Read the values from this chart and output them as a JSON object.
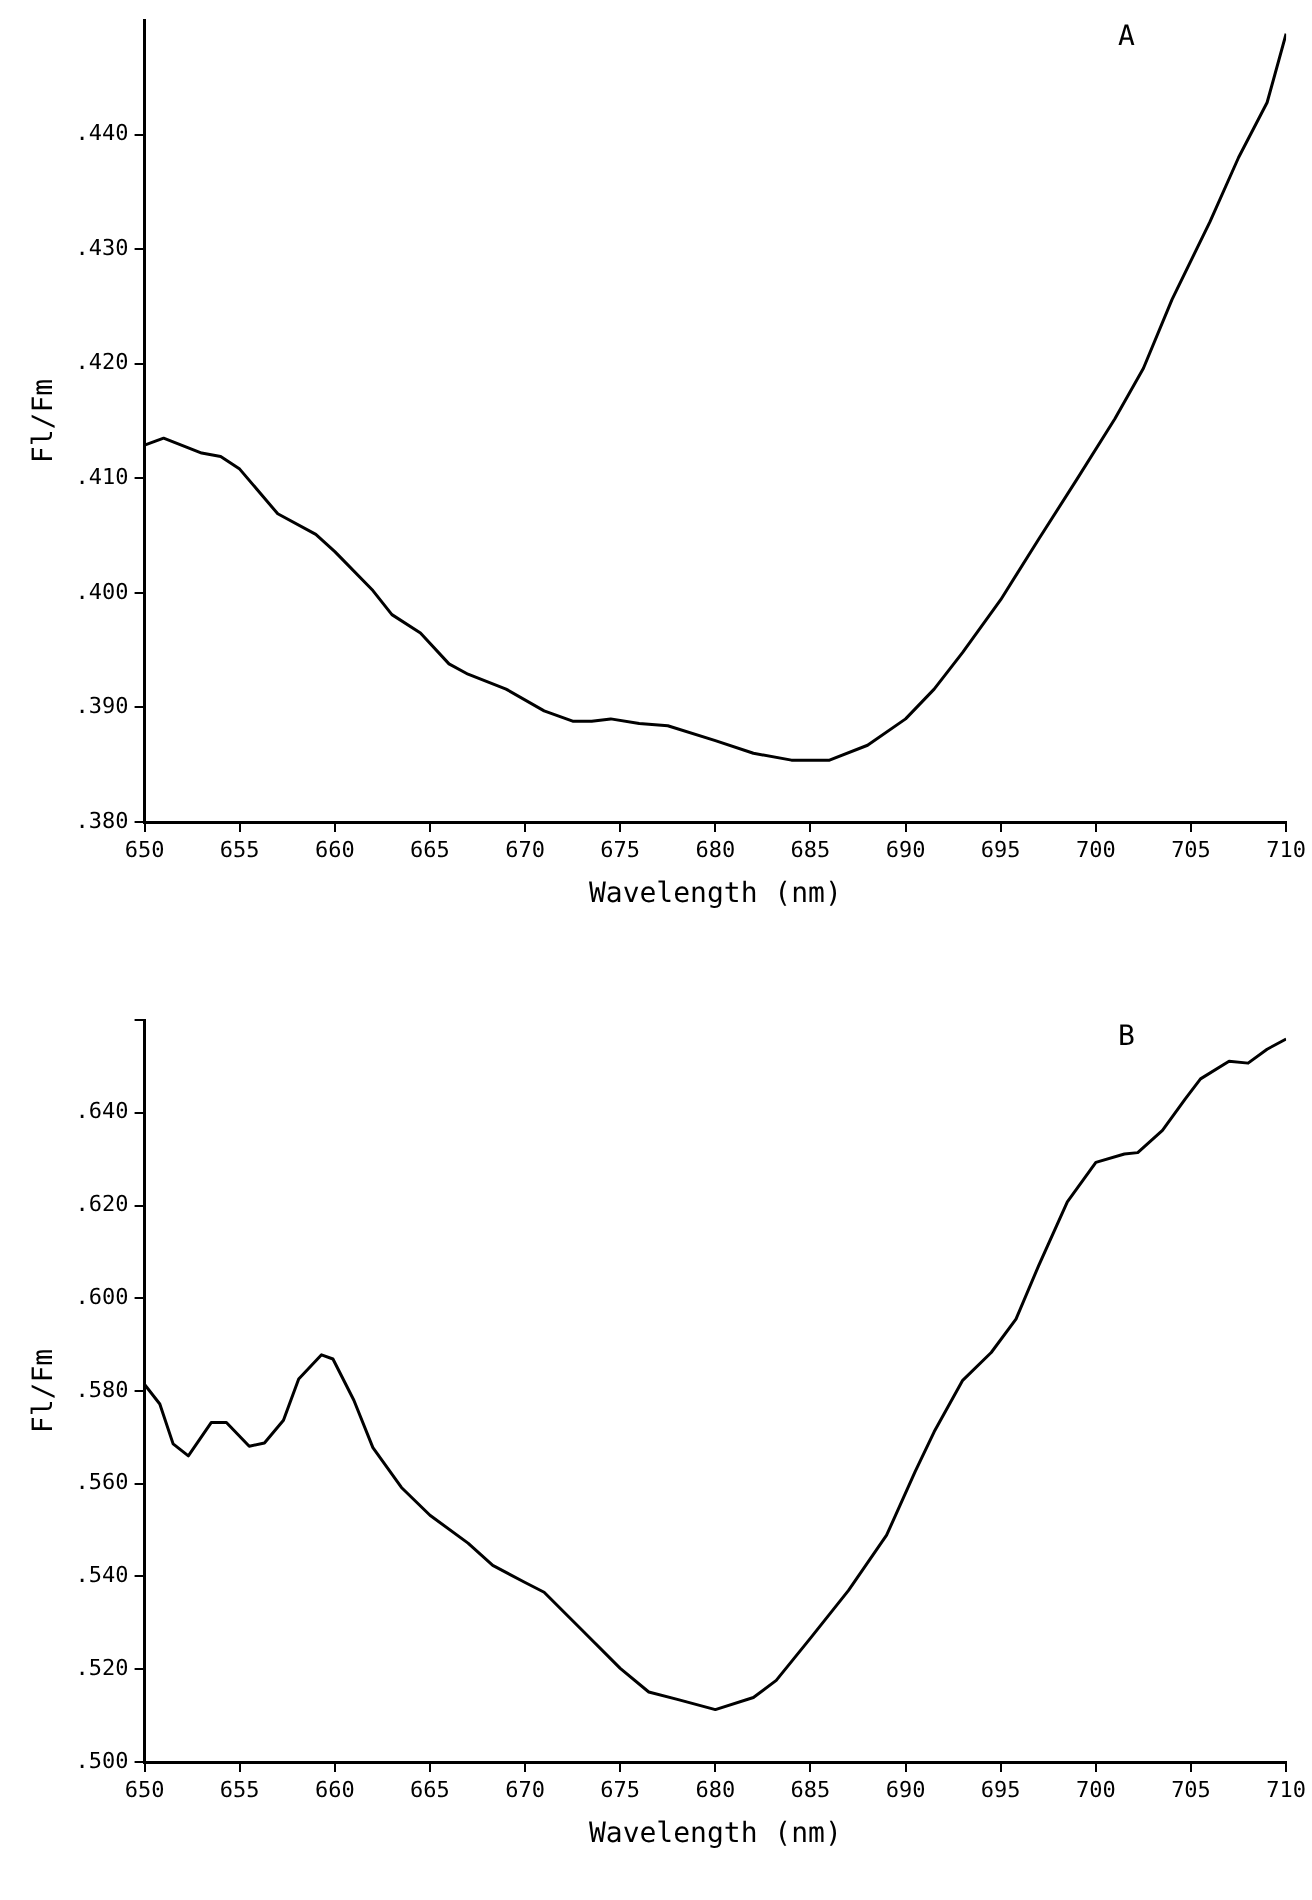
{
  "chart_data": [
    {
      "type": "line",
      "xlabel": "Wavelength (nm)",
      "ylabel": "Fl/Fm",
      "annotations": [
        "A"
      ],
      "color": "#000000",
      "xlim": [
        650,
        710
      ],
      "xticks": [
        650,
        655,
        660,
        665,
        670,
        675,
        680,
        685,
        690,
        695,
        700,
        705,
        710
      ],
      "ylim": [
        0.38,
        0.45
      ],
      "yticks": [
        {
          "value": 0.38,
          "label": ".380"
        },
        {
          "value": 0.39,
          "label": ".390"
        },
        {
          "value": 0.4,
          "label": ".400"
        },
        {
          "value": 0.41,
          "label": ".410"
        },
        {
          "value": 0.42,
          "label": ".420"
        },
        {
          "value": 0.43,
          "label": ".430"
        },
        {
          "value": 0.44,
          "label": ".440"
        }
      ],
      "grid": false,
      "legend": false,
      "marker": "none",
      "x": [
        650,
        651,
        653,
        654,
        655,
        657,
        659,
        660,
        662,
        663,
        664.5,
        666,
        667,
        669,
        671,
        672.5,
        673.5,
        674.5,
        676,
        677.5,
        680,
        682,
        684,
        686,
        688,
        690,
        691.5,
        693,
        695,
        697,
        699,
        701,
        702.5,
        704,
        706,
        707.5,
        709,
        710
      ],
      "values": [
        0.4129,
        0.4135,
        0.4122,
        0.4119,
        0.4108,
        0.4069,
        0.4051,
        0.4036,
        0.4002,
        0.3981,
        0.3965,
        0.3938,
        0.3929,
        0.3916,
        0.3897,
        0.3888,
        0.3888,
        0.389,
        0.3886,
        0.3884,
        0.3871,
        0.386,
        0.3854,
        0.3854,
        0.3867,
        0.389,
        0.3916,
        0.3948,
        0.3994,
        0.4047,
        0.4099,
        0.4152,
        0.4196,
        0.4256,
        0.4324,
        0.438,
        0.4428,
        0.4488
      ]
    },
    {
      "type": "line",
      "xlabel": "Wavelength (nm)",
      "ylabel": "Fl/Fm",
      "annotations": [
        "B"
      ],
      "color": "#000000",
      "xlim": [
        650,
        710
      ],
      "xticks": [
        650,
        655,
        660,
        665,
        670,
        675,
        680,
        685,
        690,
        695,
        700,
        705,
        710
      ],
      "ylim": [
        0.5,
        0.66
      ],
      "yticks": [
        {
          "value": 0.5,
          "label": ".500"
        },
        {
          "value": 0.52,
          "label": ".520"
        },
        {
          "value": 0.54,
          "label": ".540"
        },
        {
          "value": 0.56,
          "label": ".560"
        },
        {
          "value": 0.58,
          "label": ".580"
        },
        {
          "value": 0.6,
          "label": ".600"
        },
        {
          "value": 0.62,
          "label": ".620"
        },
        {
          "value": 0.64,
          "label": ".640"
        },
        {
          "value": 0.66,
          "label": null
        }
      ],
      "grid": false,
      "legend": false,
      "marker": "none",
      "x": [
        650,
        650.8,
        651.5,
        652.3,
        653.5,
        654.3,
        655.5,
        656.3,
        657.3,
        658.1,
        659.3,
        659.9,
        661,
        662,
        663.5,
        665,
        667,
        668.3,
        670,
        671,
        673,
        675,
        676.5,
        678,
        680,
        682,
        683.2,
        685,
        687,
        689,
        690.5,
        691.5,
        693,
        694.5,
        695.8,
        697,
        698.5,
        700,
        701.5,
        702.2,
        703.5,
        704.7,
        705.5,
        707,
        708,
        709,
        710
      ],
      "values": [
        0.5814,
        0.5772,
        0.5686,
        0.566,
        0.5732,
        0.5732,
        0.5681,
        0.5688,
        0.5737,
        0.5826,
        0.5878,
        0.5869,
        0.578,
        0.5678,
        0.5592,
        0.5532,
        0.5472,
        0.5424,
        0.5387,
        0.5366,
        0.5284,
        0.5202,
        0.5151,
        0.5135,
        0.5113,
        0.5139,
        0.5176,
        0.5267,
        0.537,
        0.5489,
        0.5626,
        0.5712,
        0.5823,
        0.5883,
        0.5955,
        0.6071,
        0.6208,
        0.6293,
        0.6311,
        0.6314,
        0.6362,
        0.643,
        0.6473,
        0.6511,
        0.6507,
        0.6537,
        0.6559
      ]
    }
  ]
}
